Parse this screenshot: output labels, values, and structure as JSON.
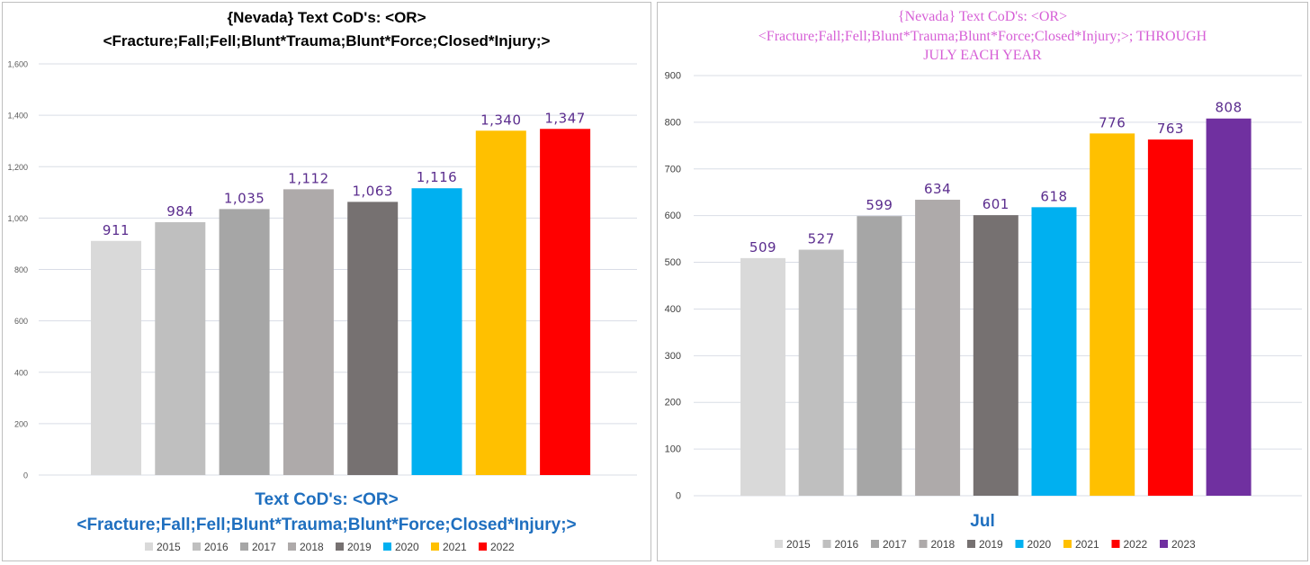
{
  "chart_data": [
    {
      "type": "bar",
      "title": [
        "{Nevada}  Text CoD's:  <OR>",
        "<Fracture;Fall;Fell;Blunt*Trauma;Blunt*Force;Closed*Injury;>"
      ],
      "xlabel": [
        "Text CoD's: <OR>",
        "<Fracture;Fall;Fell;Blunt*Trauma;Blunt*Force;Closed*Injury;>"
      ],
      "ylabel": "",
      "ylim": [
        0,
        1600
      ],
      "yticks": [
        0,
        200,
        400,
        600,
        800,
        1000,
        1200,
        1400,
        1600
      ],
      "ytick_labels": [
        "0",
        "200",
        "400",
        "600",
        "800",
        "1,000",
        "1,200",
        "1,400",
        "1,600"
      ],
      "grid": true,
      "legend_position": "bottom",
      "title_color": "#000000",
      "xlabel_color": "#1f6fbf",
      "label_color": "#5b2d8e",
      "series": [
        {
          "name": "2015",
          "value": 911,
          "label": "911",
          "color": "#d9d9d9"
        },
        {
          "name": "2016",
          "value": 984,
          "label": "984",
          "color": "#bfbfbf"
        },
        {
          "name": "2017",
          "value": 1035,
          "label": "1,035",
          "color": "#a6a6a6"
        },
        {
          "name": "2018",
          "value": 1112,
          "label": "1,112",
          "color": "#aeaaaa"
        },
        {
          "name": "2019",
          "value": 1063,
          "label": "1,063",
          "color": "#767171"
        },
        {
          "name": "2020",
          "value": 1116,
          "label": "1,116",
          "color": "#00b0f0"
        },
        {
          "name": "2021",
          "value": 1340,
          "label": "1,340",
          "color": "#ffc000"
        },
        {
          "name": "2022",
          "value": 1347,
          "label": "1,347",
          "color": "#ff0000"
        }
      ]
    },
    {
      "type": "bar",
      "title": [
        "{Nevada}   Text CoD's: <OR>",
        "<Fracture;Fall;Fell;Blunt*Trauma;Blunt*Force;Closed*Injury;>; THROUGH",
        "JULY EACH YEAR"
      ],
      "xlabel": [
        "Jul"
      ],
      "ylabel": "",
      "ylim": [
        0,
        900
      ],
      "yticks": [
        0,
        100,
        200,
        300,
        400,
        500,
        600,
        700,
        800,
        900
      ],
      "ytick_labels": [
        "0",
        "100",
        "200",
        "300",
        "400",
        "500",
        "600",
        "700",
        "800",
        "900"
      ],
      "grid": true,
      "legend_position": "bottom",
      "title_color": "#d65fd6",
      "xlabel_color": "#1f6fbf",
      "label_color": "#5b2d8e",
      "series": [
        {
          "name": "2015",
          "value": 509,
          "label": "509",
          "color": "#d9d9d9"
        },
        {
          "name": "2016",
          "value": 527,
          "label": "527",
          "color": "#bfbfbf"
        },
        {
          "name": "2017",
          "value": 599,
          "label": "599",
          "color": "#a6a6a6"
        },
        {
          "name": "2018",
          "value": 634,
          "label": "634",
          "color": "#aeaaaa"
        },
        {
          "name": "2019",
          "value": 601,
          "label": "601",
          "color": "#767171"
        },
        {
          "name": "2020",
          "value": 618,
          "label": "618",
          "color": "#00b0f0"
        },
        {
          "name": "2021",
          "value": 776,
          "label": "776",
          "color": "#ffc000"
        },
        {
          "name": "2022",
          "value": 763,
          "label": "763",
          "color": "#ff0000"
        },
        {
          "name": "2023",
          "value": 808,
          "label": "808",
          "color": "#7030a0"
        }
      ]
    }
  ]
}
